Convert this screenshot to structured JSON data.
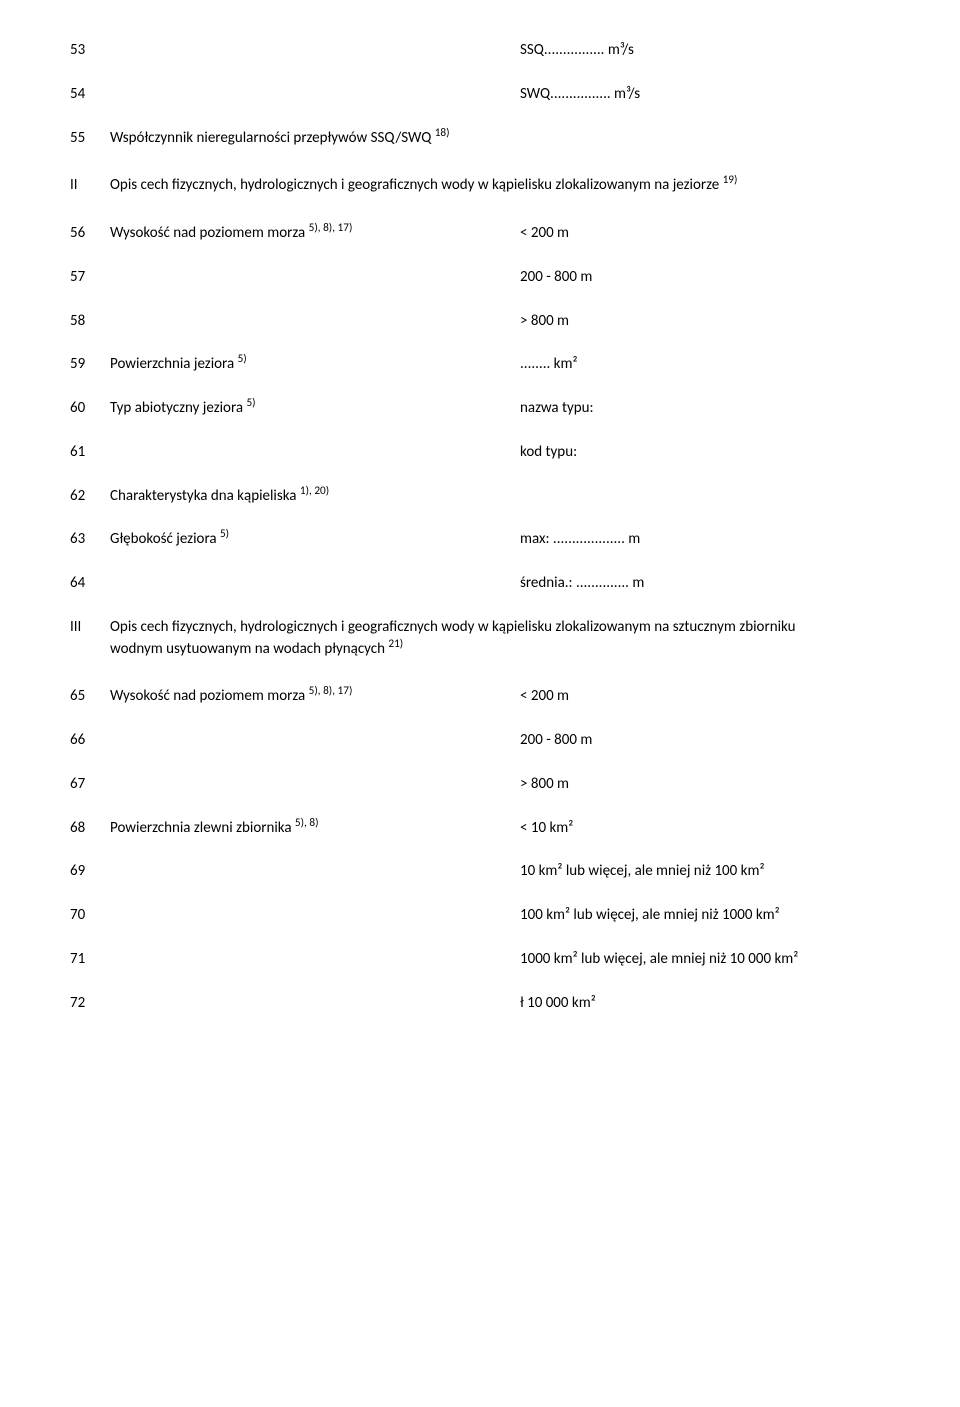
{
  "rows": {
    "r53": {
      "num": "53",
      "value": "SSQ................ m³/s"
    },
    "r54": {
      "num": "54",
      "value": "SWQ................ m³/s"
    },
    "r55": {
      "num": "55",
      "label_pre": "Współczynnik nieregularności przepływów SSQ/SWQ ",
      "label_sup": "18)"
    },
    "rII": {
      "num": "II",
      "label_pre": "Opis cech fizycznych, hydrologicznych i geograficznych wody w kąpielisku zlokalizowanym na jeziorze ",
      "label_sup": "19)"
    },
    "r56": {
      "num": "56",
      "label_pre": "Wysokość nad poziomem morza ",
      "label_sup": "5), 8), 17)",
      "value": "< 200 m"
    },
    "r57": {
      "num": "57",
      "value": "200 - 800 m"
    },
    "r58": {
      "num": "58",
      "value": "> 800 m"
    },
    "r59": {
      "num": "59",
      "label_pre": "Powierzchnia jeziora ",
      "label_sup": "5)",
      "value": "........ km²"
    },
    "r60": {
      "num": "60",
      "label_pre": "Typ abiotyczny jeziora ",
      "label_sup": "5)",
      "value": "nazwa typu:"
    },
    "r61": {
      "num": "61",
      "value": "kod typu:"
    },
    "r62": {
      "num": "62",
      "label_pre": "Charakterystyka dna kąpieliska ",
      "label_sup": "1), 20)"
    },
    "r63": {
      "num": "63",
      "label_pre": "Głębokość jeziora ",
      "label_sup": "5)",
      "value": "max: ................... m"
    },
    "r64": {
      "num": "64",
      "value": "średnia.: .............. m"
    },
    "rIII": {
      "num": "III",
      "label_pre": "Opis cech fizycznych, hydrologicznych i geograficznych wody w kąpielisku zlokalizowanym na sztucznym zbiorniku wodnym usytuowanym na wodach płynących ",
      "label_sup": "21)"
    },
    "r65": {
      "num": "65",
      "label_pre": "Wysokość nad poziomem morza ",
      "label_sup": "5), 8), 17)",
      "value": "< 200 m"
    },
    "r66": {
      "num": "66",
      "value": "200 - 800 m"
    },
    "r67": {
      "num": "67",
      "value": "> 800 m"
    },
    "r68": {
      "num": "68",
      "label_pre": "Powierzchnia zlewni zbiornika ",
      "label_sup": "5), 8)",
      "value": "< 10 km²"
    },
    "r69": {
      "num": "69",
      "value": "10 km² lub więcej, ale mniej niż 100 km²"
    },
    "r70": {
      "num": "70",
      "value": "100 km² lub więcej, ale mniej niż 1000 km²"
    },
    "r71": {
      "num": "71",
      "value": "1000 km² lub więcej, ale mniej niż 10 000 km²"
    },
    "r72": {
      "num": "72",
      "value": "ł 10 000 km²"
    }
  }
}
